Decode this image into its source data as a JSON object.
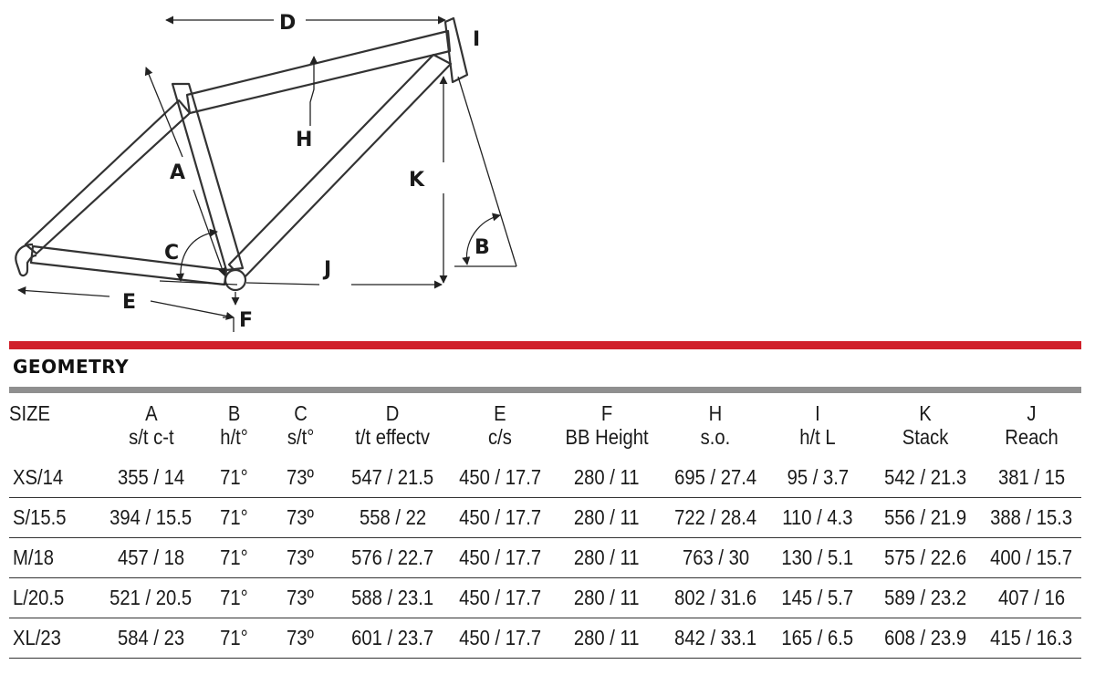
{
  "diagram": {
    "labels": {
      "A": "A",
      "B": "B",
      "C": "C",
      "D": "D",
      "E": "E",
      "F": "F",
      "H": "H",
      "I": "I",
      "J": "J",
      "K": "K"
    }
  },
  "section": {
    "title": "GEOMETRY"
  },
  "table": {
    "size_header": "SIZE",
    "columns": [
      {
        "code": "A",
        "desc": "s/t c-t"
      },
      {
        "code": "B",
        "desc": "h/t°"
      },
      {
        "code": "C",
        "desc": "s/t°"
      },
      {
        "code": "D",
        "desc": "t/t effectv"
      },
      {
        "code": "E",
        "desc": "c/s"
      },
      {
        "code": "F",
        "desc": "BB Height"
      },
      {
        "code": "H",
        "desc": "s.o."
      },
      {
        "code": "I",
        "desc": "h/t L"
      },
      {
        "code": "K",
        "desc": "Stack"
      },
      {
        "code": "J",
        "desc": "Reach"
      }
    ],
    "rows": [
      {
        "size": "XS/14",
        "values": [
          "355 / 14",
          "71°",
          "73º",
          "547 / 21.5",
          "450 / 17.7",
          "280 / 11",
          "695 / 27.4",
          "95 / 3.7",
          "542 / 21.3",
          "381 / 15"
        ]
      },
      {
        "size": "S/15.5",
        "values": [
          "394 / 15.5",
          "71°",
          "73º",
          "558 / 22",
          "450 / 17.7",
          "280 / 11",
          "722 / 28.4",
          "110 / 4.3",
          "556 / 21.9",
          "388 / 15.3"
        ]
      },
      {
        "size": "M/18",
        "values": [
          "457 / 18",
          "71°",
          "73º",
          "576 / 22.7",
          "450 / 17.7",
          "280 / 11",
          "763 / 30",
          "130 / 5.1",
          "575 / 22.6",
          "400 / 15.7"
        ]
      },
      {
        "size": "L/20.5",
        "values": [
          "521 / 20.5",
          "71°",
          "73º",
          "588 / 23.1",
          "450 / 17.7",
          "280 / 11",
          "802 / 31.6",
          "145 / 5.7",
          "589 / 23.2",
          "407 / 16"
        ]
      },
      {
        "size": "XL/23",
        "values": [
          "584 / 23",
          "71°",
          "73º",
          "601 / 23.7",
          "450 / 17.7",
          "280 / 11",
          "842 / 33.1",
          "165 / 6.5",
          "608 / 23.9",
          "415 / 16.3"
        ]
      }
    ]
  }
}
